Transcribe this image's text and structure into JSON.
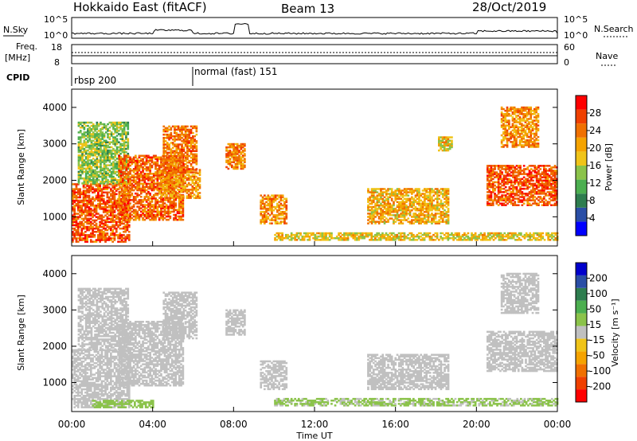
{
  "header": {
    "station": "Hokkaido East (fitACF)",
    "beam": "Beam 13",
    "date": "28/Oct/2019"
  },
  "strip": {
    "nsky_label": "N.Sky",
    "nsky_ticks": [
      "10^5",
      "10^0"
    ],
    "nsearch_label": "N.Search",
    "freq_label_1": "Freq.",
    "freq_label_2": "[MHz]",
    "freq_ticks": [
      "18",
      "8"
    ],
    "nave_label": "Nave",
    "nave_ticks": [
      "60",
      "0"
    ],
    "cpid_label": "CPID",
    "cpid_entries": [
      {
        "label": "rbsp 200",
        "start_hour": 0
      },
      {
        "label": "normal (fast) 151",
        "start_hour": 6
      }
    ]
  },
  "colors": {
    "power_scale": [
      "#0000ff",
      "#2a4ea6",
      "#2e7d4f",
      "#4caf50",
      "#8bc34a",
      "#f0c419",
      "#f5a300",
      "#f07000",
      "#f04000",
      "#ff0000"
    ],
    "velocity_scale": [
      "#ff0000",
      "#f04000",
      "#f07000",
      "#f5a300",
      "#f0c419",
      "#c0c0c0",
      "#8bc34a",
      "#4caf50",
      "#2e7d4f",
      "#2a4ea6",
      "#0000cc"
    ],
    "ground_scatter": "#c0c0c0"
  },
  "chart_data": [
    {
      "type": "heatmap",
      "name": "power",
      "ylabel": "Slant Range [km]",
      "colorbar_label": "Power [dB]",
      "colorbar_ticks": [
        "4",
        "8",
        "12",
        "16",
        "20",
        "24",
        "28"
      ],
      "colorbar_range": [
        0,
        32
      ],
      "x_range_hours": [
        0,
        24
      ],
      "ylim": [
        200,
        4500
      ],
      "y_ticks": [
        "1000",
        "2000",
        "3000",
        "4000"
      ],
      "regions": [
        {
          "t0": 0.0,
          "t1": 2.8,
          "r0": 300,
          "r1": 1900,
          "value": 26
        },
        {
          "t0": 0.3,
          "t1": 2.8,
          "r0": 1900,
          "r1": 3600,
          "value": 14
        },
        {
          "t0": 2.3,
          "t1": 5.5,
          "r0": 900,
          "r1": 2700,
          "value": 25
        },
        {
          "t0": 4.3,
          "t1": 6.3,
          "r0": 1500,
          "r1": 2300,
          "value": 22
        },
        {
          "t0": 4.5,
          "t1": 6.2,
          "r0": 2200,
          "r1": 3500,
          "value": 24
        },
        {
          "t0": 7.6,
          "t1": 8.5,
          "r0": 2300,
          "r1": 3000,
          "value": 23
        },
        {
          "t0": 9.3,
          "t1": 10.6,
          "r0": 800,
          "r1": 1600,
          "value": 22
        },
        {
          "t0": 14.6,
          "t1": 18.6,
          "r0": 800,
          "r1": 1750,
          "value": 20
        },
        {
          "t0": 18.1,
          "t1": 18.8,
          "r0": 2800,
          "r1": 3200,
          "value": 18
        },
        {
          "t0": 20.5,
          "t1": 24.0,
          "r0": 1300,
          "r1": 2400,
          "value": 26
        },
        {
          "t0": 21.2,
          "t1": 23.0,
          "r0": 2900,
          "r1": 4000,
          "value": 22
        },
        {
          "t0": 10.0,
          "t1": 24.0,
          "r0": 350,
          "r1": 550,
          "value": 18
        }
      ]
    },
    {
      "type": "heatmap",
      "name": "velocity",
      "ylabel": "Slant Range [km]",
      "colorbar_label": "Velocity [m s⁻¹]",
      "colorbar_ticks": [
        "-200",
        "-100",
        "-50",
        "-15",
        "15",
        "50",
        "100",
        "200"
      ],
      "colorbar_range": [
        -250,
        250
      ],
      "x_range_hours": [
        0,
        24
      ],
      "ylim": [
        200,
        4500
      ],
      "y_ticks": [
        "1000",
        "2000",
        "3000",
        "4000"
      ],
      "xlabel": "Time UT",
      "x_ticks": [
        "00:00",
        "04:00",
        "08:00",
        "12:00",
        "16:00",
        "20:00",
        "00:00"
      ],
      "regions": [
        {
          "t0": 0.0,
          "t1": 2.8,
          "r0": 300,
          "r1": 1900,
          "value": 0
        },
        {
          "t0": 0.3,
          "t1": 2.8,
          "r0": 1900,
          "r1": 3600,
          "value": 0
        },
        {
          "t0": 2.3,
          "t1": 5.5,
          "r0": 900,
          "r1": 2700,
          "value": 0
        },
        {
          "t0": 4.5,
          "t1": 6.2,
          "r0": 2200,
          "r1": 3500,
          "value": 0
        },
        {
          "t0": 7.6,
          "t1": 8.5,
          "r0": 2300,
          "r1": 3000,
          "value": 0
        },
        {
          "t0": 9.3,
          "t1": 10.6,
          "r0": 800,
          "r1": 1600,
          "value": 0
        },
        {
          "t0": 14.6,
          "t1": 18.6,
          "r0": 800,
          "r1": 1750,
          "value": 0
        },
        {
          "t0": 20.5,
          "t1": 24.0,
          "r0": 1300,
          "r1": 2400,
          "value": 0
        },
        {
          "t0": 21.2,
          "t1": 23.0,
          "r0": 2900,
          "r1": 4000,
          "value": 0
        },
        {
          "t0": 1.0,
          "t1": 4.0,
          "r0": 300,
          "r1": 500,
          "value": 40
        },
        {
          "t0": 10.0,
          "t1": 24.0,
          "r0": 350,
          "r1": 550,
          "value": 30
        }
      ]
    }
  ]
}
